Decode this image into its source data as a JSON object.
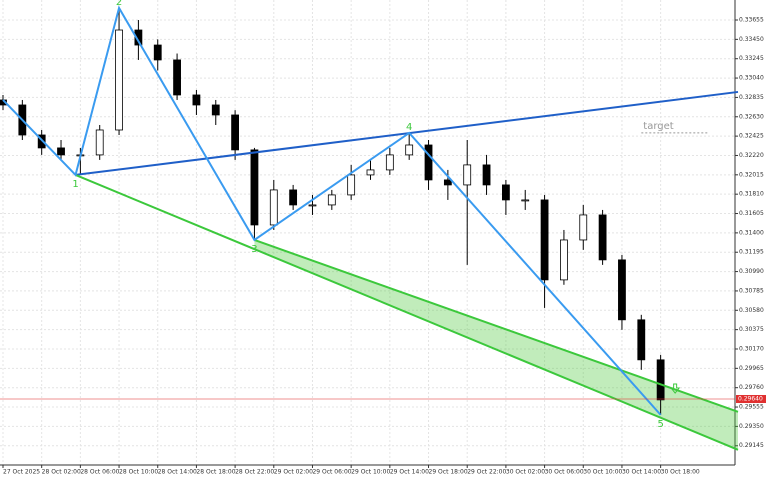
{
  "chart_data": {
    "type": "candlestick",
    "x": [
      0,
      2,
      4,
      6,
      8,
      10,
      12,
      14,
      16,
      18,
      20,
      22,
      24,
      26,
      28,
      30,
      32,
      34,
      36,
      38,
      40,
      42,
      44,
      46,
      48,
      50,
      52,
      54,
      56,
      58,
      60,
      62,
      64,
      66,
      68
    ],
    "open": [
      0.32808,
      0.32755,
      0.32437,
      0.323,
      0.32226,
      0.32226,
      0.3249,
      0.33549,
      0.3339,
      0.33232,
      0.32861,
      0.32755,
      0.32649,
      0.32279,
      0.31484,
      0.31855,
      0.31696,
      0.31696,
      0.31802,
      0.32014,
      0.32067,
      0.32226,
      0.32331,
      0.31961,
      0.31908,
      0.3212,
      0.31908,
      0.31749,
      0.31749,
      0.30902,
      0.31325,
      0.3159,
      0.31114,
      0.30479,
      0.30055
    ],
    "high": [
      0.3286,
      0.32808,
      0.3249,
      0.32384,
      0.323,
      0.32543,
      0.33782,
      0.33655,
      0.3345,
      0.333,
      0.32914,
      0.32808,
      0.327,
      0.323,
      0.31961,
      0.31908,
      0.31802,
      0.31855,
      0.3212,
      0.32173,
      0.323,
      0.32459,
      0.32384,
      0.32067,
      0.32384,
      0.32226,
      0.31961,
      0.31855,
      0.31802,
      0.31431,
      0.31696,
      0.31643,
      0.31167,
      0.30532,
      0.30108
    ],
    "low": [
      0.327,
      0.32384,
      0.32226,
      0.32173,
      0.32014,
      0.32173,
      0.32437,
      0.33232,
      0.3312,
      0.32808,
      0.32649,
      0.32543,
      0.32173,
      0.31325,
      0.31431,
      0.31643,
      0.3159,
      0.31643,
      0.31749,
      0.31961,
      0.32014,
      0.32173,
      0.31855,
      0.31749,
      0.31061,
      0.31802,
      0.3159,
      0.31643,
      0.30605,
      0.3085,
      0.3122,
      0.31061,
      0.30373,
      0.29949,
      0.29472
    ],
    "close": [
      0.32755,
      0.32437,
      0.323,
      0.32226,
      0.32226,
      0.3249,
      0.33549,
      0.3339,
      0.33232,
      0.32861,
      0.32755,
      0.32649,
      0.32279,
      0.31484,
      0.31855,
      0.31696,
      0.31696,
      0.31802,
      0.32014,
      0.32067,
      0.32226,
      0.32331,
      0.31961,
      0.31908,
      0.3212,
      0.31908,
      0.31749,
      0.31749,
      0.30902,
      0.31325,
      0.3159,
      0.31114,
      0.30479,
      0.30055,
      0.29631
    ],
    "xlim": [
      0,
      76
    ],
    "ylim": [
      0.28941,
      0.33867
    ],
    "yticks": [
      0.33655,
      {
        "value": 0.3345,
        "label": "0.33450"
      },
      0.33245,
      {
        "value": 0.3304,
        "label": "0.33040"
      },
      0.32835,
      {
        "value": 0.3263,
        "label": "0.32630"
      },
      0.32425,
      {
        "value": 0.3222,
        "label": "0.32220"
      },
      0.32015,
      {
        "value": 0.3181,
        "label": "0.31810"
      },
      0.31605,
      {
        "value": 0.314,
        "label": "0.31400"
      },
      0.31195,
      {
        "value": 0.3099,
        "label": "0.30990"
      },
      0.30785,
      {
        "value": 0.3058,
        "label": "0.30580"
      },
      0.30375,
      {
        "value": 0.3017,
        "label": "0.30170"
      },
      0.29965,
      {
        "value": 0.2976,
        "label": "0.29760"
      },
      0.29555,
      {
        "value": 0.2935,
        "label": "0.29350"
      },
      0.29145
    ],
    "xticks": [
      {
        "value": 0,
        "label": "27 Oct 2025"
      },
      {
        "value": 4,
        "label": "28 Oct 02:00"
      },
      {
        "value": 8,
        "label": "28 Oct 06:00"
      },
      {
        "value": 12,
        "label": "28 Oct 10:00"
      },
      {
        "value": 16,
        "label": "28 Oct 14:00"
      },
      {
        "value": 20,
        "label": "28 Oct 18:00"
      },
      {
        "value": 24,
        "label": "28 Oct 22:00"
      },
      {
        "value": 28,
        "label": "29 Oct 02:00"
      },
      {
        "value": 32,
        "label": "29 Oct 06:00"
      },
      {
        "value": 36,
        "label": "29 Oct 10:00"
      },
      {
        "value": 40,
        "label": "29 Oct 14:00"
      },
      {
        "value": 44,
        "label": "29 Oct 18:00"
      },
      {
        "value": 48,
        "label": "29 Oct 22:00"
      },
      {
        "value": 52,
        "label": "30 Oct 02:00"
      },
      {
        "value": 56,
        "label": "30 Oct 06:00"
      },
      {
        "value": 60,
        "label": "30 Oct 10:00"
      },
      {
        "value": 64,
        "label": "30 Oct 14:00"
      },
      {
        "value": 68,
        "label": "30 Oct 18:00"
      }
    ],
    "grid": true,
    "bull_color": "#ffffff",
    "bear_color": "#000000",
    "zigzag": {
      "color": "#3a9bf0",
      "x": [
        0,
        7.5,
        12,
        26,
        42,
        68
      ],
      "y": [
        0.32808,
        0.32014,
        0.33782,
        0.31325,
        0.32459,
        0.29472
      ],
      "labels": [
        null,
        "1",
        "2",
        "3",
        "4",
        "5"
      ],
      "label_color": "#3cc83c"
    },
    "trendlines": [
      {
        "color": "#1f5fc8",
        "x": [
          7.5,
          76
        ],
        "y": [
          0.32014,
          0.32893
        ]
      },
      {
        "color": "#3cc83c",
        "x": [
          7.5,
          76
        ],
        "y": [
          0.32014,
          0.29102
        ]
      },
      {
        "color": "#3cc83c",
        "x": [
          26,
          76
        ],
        "y": [
          0.31325,
          0.29504
        ]
      }
    ],
    "channel_fill": "rgba(76,200,60,0.35)",
    "current_price": {
      "value": 0.2964,
      "label": "0.29640",
      "color": "#e03030"
    },
    "target": {
      "value": 0.32459,
      "label": "target",
      "x": [
        66,
        73
      ]
    }
  }
}
